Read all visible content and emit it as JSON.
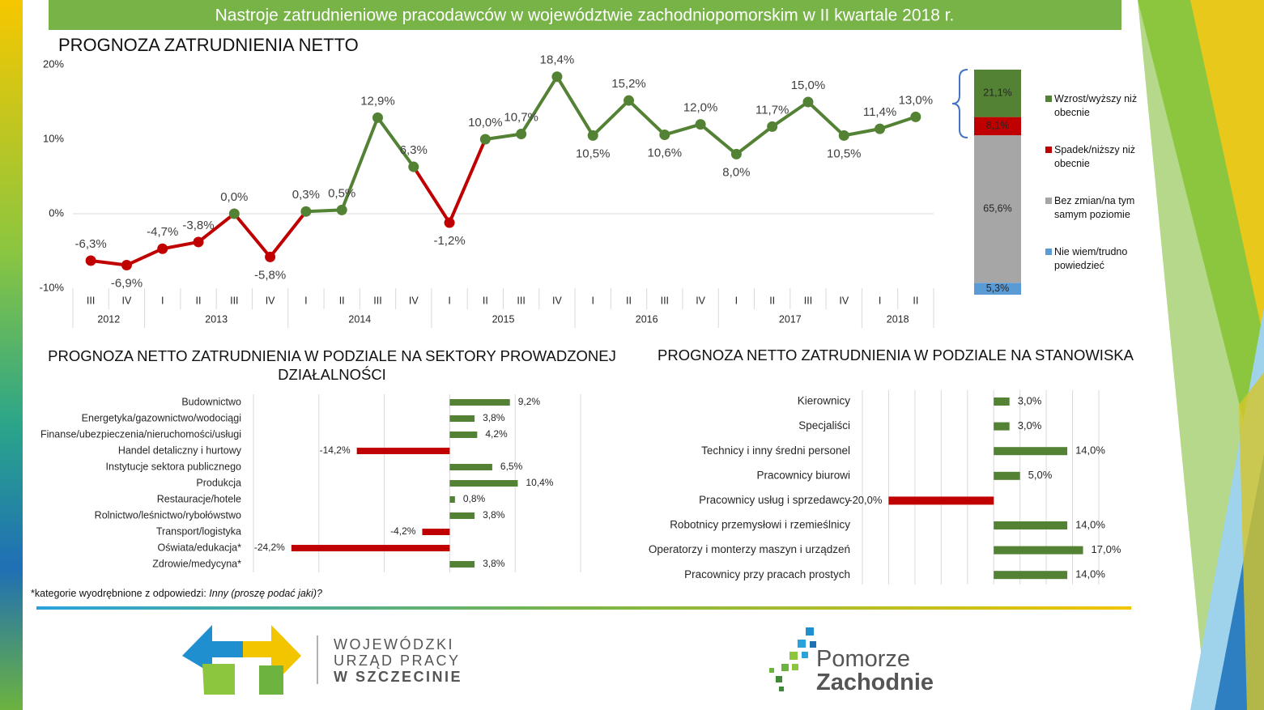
{
  "header": {
    "title": "Nastroje zatrudnieniowe pracodawców w województwie zachodniopomorskim w II kwartale 2018 r."
  },
  "chart_data": [
    {
      "type": "line",
      "title": "PROGNOZA ZATRUDNIENIA NETTO",
      "categories": [
        "III",
        "IV",
        "I",
        "II",
        "III",
        "IV",
        "I",
        "II",
        "III",
        "IV",
        "I",
        "II",
        "III",
        "IV",
        "I",
        "II",
        "III",
        "IV",
        "I",
        "II",
        "III",
        "IV",
        "I",
        "II"
      ],
      "category_groups": [
        "2012",
        "2012",
        "2013",
        "2013",
        "2013",
        "2013",
        "2014",
        "2014",
        "2014",
        "2014",
        "2015",
        "2015",
        "2015",
        "2015",
        "2016",
        "2016",
        "2016",
        "2016",
        "2017",
        "2017",
        "2017",
        "2017",
        "2018",
        "2018"
      ],
      "values": [
        -6.3,
        -6.9,
        -4.7,
        -3.8,
        0.0,
        -5.8,
        0.3,
        0.5,
        12.9,
        6.3,
        -1.2,
        10.0,
        10.7,
        18.4,
        10.5,
        15.2,
        10.6,
        12.0,
        8.0,
        11.7,
        15.0,
        10.5,
        11.4,
        13.0
      ],
      "value_labels": [
        "-6,3%",
        "-6,9%",
        "-4,7%",
        "-3,8%",
        "0,0%",
        "-5,8%",
        "0,3%",
        "0,5%",
        "12,9%",
        "6,3%",
        "-1,2%",
        "10,0%",
        "10,7%",
        "18,4%",
        "10,5%",
        "15,2%",
        "10,6%",
        "12,0%",
        "8,0%",
        "11,7%",
        "15,0%",
        "10,5%",
        "11,4%",
        "13,0%"
      ],
      "color": "#548235",
      "negative_color": "#c00000",
      "ylim": [
        -10,
        20
      ],
      "yticks": [
        {
          "value": -10,
          "label": "-10%"
        },
        {
          "value": 0,
          "label": "0%"
        },
        {
          "value": 10,
          "label": "10%"
        },
        {
          "value": 20,
          "label": "20%"
        }
      ]
    },
    {
      "type": "stacked_bar",
      "series": [
        {
          "name": "Wzrost/wyższy niż obecnie",
          "color": "#548235",
          "values": [
            21.1
          ],
          "value_labels": [
            "21,1%"
          ]
        },
        {
          "name": "Spadek/niższy niż obecnie",
          "color": "#c00000",
          "values": [
            8.1
          ],
          "value_labels": [
            "8,1%"
          ]
        },
        {
          "name": "Bez zmian/na tym samym poziomie",
          "color": "#a6a6a6",
          "values": [
            65.6
          ],
          "value_labels": [
            "65,6%"
          ]
        },
        {
          "name": "Nie wiem/trudno powiedzieć",
          "color": "#5b9bd5",
          "values": [
            5.3
          ],
          "value_labels": [
            "5,3%"
          ]
        }
      ]
    },
    {
      "type": "hbar",
      "title": "PROGNOZA NETTO ZATRUDNIENIA W PODZIALE NA SEKTORY PROWADZONEJ DZIAŁALNOŚCI",
      "categories": [
        "Budownictwo",
        "Energetyka/gazownictwo/wodociągi",
        "Finanse/ubezpieczenia/nieruchomości/usługi",
        "Handel detaliczny i hurtowy",
        "Instytucje sektora publicznego",
        "Produkcja",
        "Restauracje/hotele",
        "Rolnictwo/leśnictwo/rybołówstwo",
        "Transport/logistyka",
        "Oświata/edukacja*",
        "Zdrowie/medycyna*"
      ],
      "values": [
        9.2,
        3.8,
        4.2,
        -14.2,
        6.5,
        10.4,
        0.8,
        3.8,
        -4.2,
        -24.2,
        3.8
      ],
      "value_labels": [
        "9,2%",
        "3,8%",
        "4,2%",
        "-14,2%",
        "6,5%",
        "10,4%",
        "0,8%",
        "3,8%",
        "-4,2%",
        "-24,2%",
        "3,8%"
      ],
      "color": "#548235",
      "negative_color": "#c00000",
      "xlim": [
        -30,
        20
      ],
      "xticks": [
        -30,
        -20,
        -10,
        0,
        10,
        20
      ],
      "grid": true
    },
    {
      "type": "hbar",
      "title": "PROGNOZA NETTO ZATRUDNIENIA W PODZIALE NA STANOWISKA",
      "categories": [
        "Kierownicy",
        "Specjaliści",
        "Technicy i inny średni personel",
        "Pracownicy biurowi",
        "Pracownicy usług i sprzedawcy",
        "Robotnicy przemysłowi i rzemieślnicy",
        "Operatorzy i monterzy maszyn i urządzeń",
        "Pracownicy przy pracach prostych"
      ],
      "values": [
        3.0,
        3.0,
        14.0,
        5.0,
        -20.0,
        14.0,
        17.0,
        14.0
      ],
      "value_labels": [
        "3,0%",
        "3,0%",
        "14,0%",
        "5,0%",
        "-20,0%",
        "14,0%",
        "17,0%",
        "14,0%"
      ],
      "color": "#548235",
      "negative_color": "#c00000",
      "xlim": [
        -25,
        20
      ],
      "xticks": [
        -25,
        -20,
        -15,
        -10,
        -5,
        0,
        5,
        10,
        15,
        20
      ],
      "grid": true
    }
  ],
  "footnote": {
    "text": "*kategorie wyodrębnione z odpowiedzi: ",
    "emphasis": "Inny (proszę podać jaki)?"
  },
  "logos": {
    "wup": [
      "WOJEWÓDZKI",
      "URZĄD PRACY",
      "W SZCZECINIE"
    ],
    "pomorze": [
      "Pomorze",
      "Zachodnie"
    ]
  }
}
